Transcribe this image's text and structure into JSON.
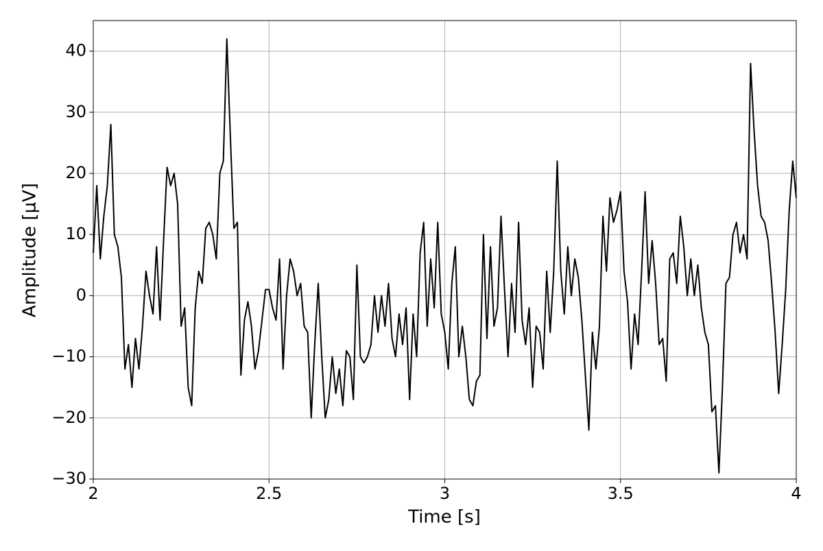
{
  "chart_data": {
    "type": "line",
    "xlabel": "Time [s]",
    "ylabel": "Amplitude [μV]",
    "xlim": [
      2,
      4
    ],
    "xticks": [
      2,
      2.5,
      3,
      3.5,
      4
    ],
    "ylim": [
      -30,
      45
    ],
    "yticks": [
      {
        "value": -30,
        "label": "−30"
      },
      {
        "value": -20,
        "label": "−20"
      },
      {
        "value": -10,
        "label": "−10"
      },
      0,
      10,
      20,
      30,
      40
    ],
    "grid": true,
    "series": [
      {
        "color": "#000000",
        "x": [
          2.0,
          2.01,
          2.02,
          2.03,
          2.04,
          2.05,
          2.06,
          2.07,
          2.08,
          2.09,
          2.1,
          2.11,
          2.12,
          2.13,
          2.14,
          2.15,
          2.16,
          2.17,
          2.18,
          2.19,
          2.2,
          2.21,
          2.22,
          2.23,
          2.24,
          2.25,
          2.26,
          2.27,
          2.28,
          2.29,
          2.3,
          2.31,
          2.32,
          2.33,
          2.34,
          2.35,
          2.36,
          2.37,
          2.38,
          2.39,
          2.4,
          2.41,
          2.42,
          2.43,
          2.44,
          2.45,
          2.46,
          2.47,
          2.48,
          2.49,
          2.5,
          2.51,
          2.52,
          2.53,
          2.54,
          2.55,
          2.56,
          2.57,
          2.58,
          2.59,
          2.6,
          2.61,
          2.62,
          2.63,
          2.64,
          2.65,
          2.66,
          2.67,
          2.68,
          2.69,
          2.7,
          2.71,
          2.72,
          2.73,
          2.74,
          2.75,
          2.76,
          2.77,
          2.78,
          2.79,
          2.8,
          2.81,
          2.82,
          2.83,
          2.84,
          2.85,
          2.86,
          2.87,
          2.88,
          2.89,
          2.9,
          2.91,
          2.92,
          2.93,
          2.94,
          2.95,
          2.96,
          2.97,
          2.98,
          2.99,
          3.0,
          3.01,
          3.02,
          3.03,
          3.04,
          3.05,
          3.06,
          3.07,
          3.08,
          3.09,
          3.1,
          3.11,
          3.12,
          3.13,
          3.14,
          3.15,
          3.16,
          3.17,
          3.18,
          3.19,
          3.2,
          3.21,
          3.22,
          3.23,
          3.24,
          3.25,
          3.26,
          3.27,
          3.28,
          3.29,
          3.3,
          3.31,
          3.32,
          3.33,
          3.34,
          3.35,
          3.36,
          3.37,
          3.38,
          3.39,
          3.4,
          3.41,
          3.42,
          3.43,
          3.44,
          3.45,
          3.46,
          3.47,
          3.48,
          3.49,
          3.5,
          3.51,
          3.52,
          3.53,
          3.54,
          3.55,
          3.56,
          3.57,
          3.58,
          3.59,
          3.6,
          3.61,
          3.62,
          3.63,
          3.64,
          3.65,
          3.66,
          3.67,
          3.68,
          3.69,
          3.7,
          3.71,
          3.72,
          3.73,
          3.74,
          3.75,
          3.76,
          3.77,
          3.78,
          3.79,
          3.8,
          3.81,
          3.82,
          3.83,
          3.84,
          3.85,
          3.86,
          3.87,
          3.88,
          3.89,
          3.9,
          3.91,
          3.92,
          3.93,
          3.94,
          3.95,
          3.96,
          3.97,
          3.98,
          3.99,
          4.0
        ],
        "values": [
          7,
          18,
          6,
          13,
          18,
          28,
          10,
          8,
          3,
          -12,
          -8,
          -15,
          -7,
          -12,
          -5,
          4,
          0,
          -3,
          8,
          -4,
          9,
          21,
          18,
          20,
          15,
          -5,
          -2,
          -15,
          -18,
          -2,
          4,
          2,
          11,
          12,
          10,
          6,
          20,
          22,
          42,
          26,
          11,
          12,
          -13,
          -4,
          -1,
          -5,
          -12,
          -9,
          -4,
          1,
          1,
          -2,
          -4,
          6,
          -12,
          0,
          6,
          4,
          0,
          2,
          -5,
          -6,
          -20,
          -8,
          2,
          -10,
          -20,
          -17,
          -10,
          -16,
          -12,
          -18,
          -9,
          -10,
          -17,
          5,
          -10,
          -11,
          -10,
          -8,
          0,
          -6,
          0,
          -5,
          2,
          -7,
          -10,
          -3,
          -8,
          -2,
          -17,
          -3,
          -10,
          7,
          12,
          -5,
          6,
          -2,
          12,
          -3,
          -6,
          -12,
          2,
          8,
          -10,
          -5,
          -10,
          -17,
          -18,
          -14,
          -13,
          10,
          -7,
          8,
          -5,
          -2,
          13,
          1,
          -10,
          2,
          -6,
          12,
          -4,
          -8,
          -2,
          -15,
          -5,
          -6,
          -12,
          4,
          -6,
          4,
          22,
          4,
          -3,
          8,
          0,
          6,
          3,
          -4,
          -13,
          -22,
          -6,
          -12,
          -5,
          13,
          4,
          16,
          12,
          14,
          17,
          4,
          -1,
          -12,
          -3,
          -8,
          4,
          17,
          2,
          9,
          2,
          -8,
          -7,
          -14,
          6,
          7,
          2,
          13,
          8,
          0,
          6,
          0,
          5,
          -2,
          -6,
          -8,
          -19,
          -18,
          -29,
          -15,
          2,
          3,
          10,
          12,
          7,
          10,
          6,
          38,
          27,
          18,
          13,
          12,
          9,
          2,
          -6,
          -16,
          -8,
          1,
          14,
          22,
          16
        ]
      }
    ]
  }
}
